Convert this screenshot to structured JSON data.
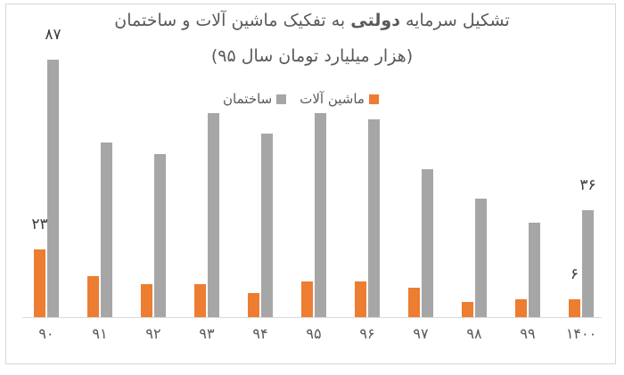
{
  "title": {
    "pre": "تشکیل سرمایه",
    "bold": "دولتی",
    "post": "به تفکیک ماشین آلات و ساختمان",
    "subtitle": "(هزار میلیارد تومان سال ۹۵)"
  },
  "legend": [
    {
      "key": "machinery",
      "name": "ماشین آلات",
      "color": "#ED7D31"
    },
    {
      "key": "construction",
      "name": "ساختمان",
      "color": "#A6A6A6"
    }
  ],
  "colors": {
    "machinery": "#ED7D31",
    "construction": "#A6A6A6",
    "axis_line": "#d9d9d9",
    "text": "#595959",
    "data_label": "#3a3a3a",
    "frame_border": "#d6d6d6"
  },
  "chart_data": {
    "type": "bar",
    "title": "تشکیل سرمایه دولتی به تفکیک ماشین آلات و ساختمان",
    "subtitle": "(هزار میلیارد تومان سال ۹۵)",
    "xlabel": "",
    "ylabel": "",
    "ylim": [
      0,
      90
    ],
    "grid": false,
    "rtl": true,
    "legend_position": "top-center",
    "categories": [
      "۹۰",
      "۹۱",
      "۹۲",
      "۹۳",
      "۹۴",
      "۹۵",
      "۹۶",
      "۹۷",
      "۹۸",
      "۹۹",
      "۱۴۰۰"
    ],
    "series": [
      {
        "key": "machinery",
        "name": "ماشین آلات",
        "color": "#ED7D31",
        "values": [
          23,
          14,
          11,
          11,
          8,
          12,
          12,
          10,
          5,
          6,
          6
        ],
        "point_labels": {
          "0": "۲۳",
          "10": "۶"
        }
      },
      {
        "key": "construction",
        "name": "ساختمان",
        "color": "#A6A6A6",
        "values": [
          87,
          59,
          55,
          69,
          62,
          69,
          67,
          50,
          40,
          32,
          36
        ],
        "point_labels": {
          "0": "۸۷",
          "10": "۳۶"
        }
      }
    ]
  }
}
